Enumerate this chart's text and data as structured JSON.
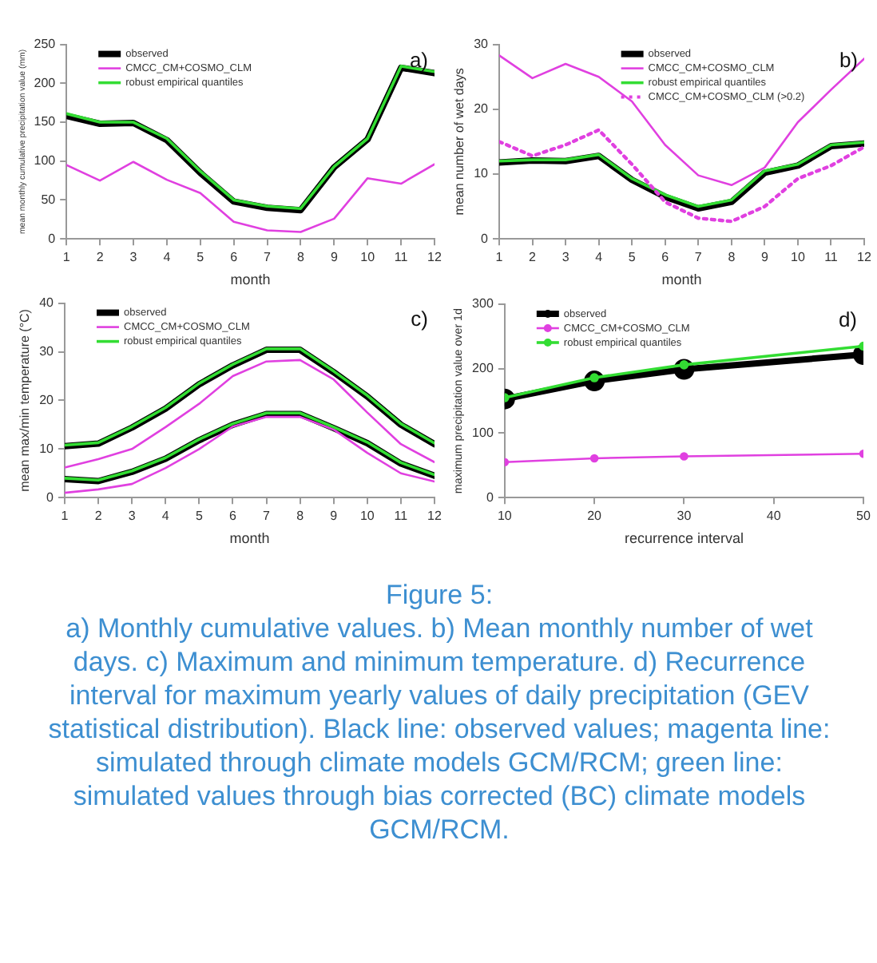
{
  "chart_data": [
    {
      "type": "line",
      "xlabel": "month",
      "ylabel": "mean monthly cumulative precipitation value (mm)",
      "x": [
        1,
        2,
        3,
        4,
        5,
        6,
        7,
        8,
        9,
        10,
        11,
        12
      ],
      "xlim": [
        1,
        12
      ],
      "xticks": [
        1,
        2,
        3,
        4,
        5,
        6,
        7,
        8,
        9,
        10,
        11,
        12
      ],
      "ylim": [
        0,
        250
      ],
      "yticks": [
        0,
        50,
        100,
        150,
        200,
        250
      ],
      "legend": "top left",
      "annotations": [
        "a)"
      ],
      "series": [
        {
          "name": "observed",
          "color": "#000000",
          "values": [
            158,
            148,
            149,
            127,
            85,
            48,
            40,
            37,
            92,
            128,
            220,
            213
          ]
        },
        {
          "name": "CMCC_CM+COSMO_CLM",
          "color": "#e040e0",
          "values": [
            95,
            75,
            99,
            76,
            59,
            22,
            11,
            9,
            26,
            78,
            71,
            96
          ]
        },
        {
          "name": "robust empirical quantiles",
          "color": "#33dd33",
          "values": [
            161,
            150,
            150,
            129,
            87,
            50,
            42,
            39,
            93,
            129,
            222,
            215
          ]
        }
      ]
    },
    {
      "type": "line",
      "xlabel": "month",
      "ylabel": "mean number of wet days",
      "x": [
        1,
        2,
        3,
        4,
        5,
        6,
        7,
        8,
        9,
        10,
        11,
        12
      ],
      "xlim": [
        1,
        12
      ],
      "xticks": [
        1,
        2,
        3,
        4,
        5,
        6,
        7,
        8,
        9,
        10,
        11,
        12
      ],
      "ylim": [
        0,
        30
      ],
      "yticks": [
        0,
        10,
        20,
        30
      ],
      "legend": "top",
      "annotations": [
        "b)"
      ],
      "series": [
        {
          "name": "observed",
          "color": "#000000",
          "values": [
            11.8,
            12.1,
            12,
            12.8,
            9.1,
            6.5,
            4.7,
            5.7,
            10.2,
            11.3,
            14.3,
            14.7
          ]
        },
        {
          "name": "CMCC_CM+COSMO_CLM",
          "color": "#e040e0",
          "values": [
            28.3,
            24.8,
            27,
            25,
            21.2,
            14.5,
            9.8,
            8.3,
            11,
            18,
            23,
            27.8
          ]
        },
        {
          "name": "robust empirical quantiles",
          "color": "#33dd33",
          "values": [
            12,
            12.2,
            12.2,
            13,
            9.3,
            6.8,
            5,
            6,
            10.5,
            11.5,
            14.5,
            14.9
          ]
        },
        {
          "name": "CMCC_CM+COSMO_CLM (>0.2)",
          "color": "#e040e0",
          "line_style": "dotted",
          "values": [
            15,
            12.8,
            14.5,
            16.8,
            11.5,
            5.7,
            3.2,
            2.7,
            5,
            9.3,
            11.3,
            14.2
          ]
        }
      ]
    },
    {
      "type": "line",
      "xlabel": "month",
      "ylabel": "mean max/min temperature (°C)",
      "x": [
        1,
        2,
        3,
        4,
        5,
        6,
        7,
        8,
        9,
        10,
        11,
        12
      ],
      "xlim": [
        1,
        12
      ],
      "xticks": [
        1,
        2,
        3,
        4,
        5,
        6,
        7,
        8,
        9,
        10,
        11,
        12
      ],
      "ylim": [
        0,
        40
      ],
      "yticks": [
        0,
        10,
        20,
        30,
        40
      ],
      "legend": "top left",
      "annotations": [
        "c)"
      ],
      "series": [
        {
          "name": "observed",
          "color": "#000000",
          "values": [
            10.6,
            11.1,
            14.4,
            18.3,
            23.3,
            27.2,
            30.4,
            30.4,
            25.8,
            20.8,
            15,
            11
          ]
        },
        {
          "color": "#000000",
          "values": [
            3.8,
            3.4,
            5.3,
            8,
            11.8,
            15,
            17.2,
            17.2,
            14.3,
            11.2,
            7,
            4.5
          ]
        },
        {
          "name": "CMCC_CM+COSMO_CLM",
          "color": "#e040e0",
          "values": [
            6.2,
            7.9,
            10,
            14.5,
            19.3,
            25,
            28,
            28.3,
            24.3,
            17.5,
            11,
            7.3
          ]
        },
        {
          "color": "#e040e0",
          "values": [
            1,
            1.7,
            2.8,
            6.1,
            10,
            14.6,
            16.6,
            16.6,
            14,
            9.2,
            5,
            3.3
          ]
        },
        {
          "name": "robust empirical quantiles",
          "color": "#33dd33",
          "values": [
            10.8,
            11.3,
            14.6,
            18.5,
            23.5,
            27.4,
            30.6,
            30.6,
            26,
            21,
            15.2,
            11.2
          ]
        },
        {
          "color": "#33dd33",
          "values": [
            4,
            3.6,
            5.5,
            8.2,
            12,
            15.2,
            17.4,
            17.4,
            14.5,
            11.4,
            7.2,
            4.7
          ]
        }
      ]
    },
    {
      "type": "line",
      "xlabel": "recurrence interval",
      "ylabel": "maximum precipitation value over 1d",
      "x": [
        10,
        20,
        30,
        50
      ],
      "xlim": [
        10,
        50
      ],
      "xticks": [
        10,
        20,
        30,
        40,
        50
      ],
      "ylim": [
        0,
        300
      ],
      "yticks": [
        0,
        100,
        200,
        300
      ],
      "legend": "top left",
      "marker": "circle",
      "annotations": [
        "d)"
      ],
      "series": [
        {
          "name": "observed",
          "color": "#000000",
          "values": [
            153,
            181,
            199,
            222
          ]
        },
        {
          "name": "CMCC_CM+COSMO_CLM",
          "color": "#e040e0",
          "values": [
            55,
            61,
            64,
            68
          ]
        },
        {
          "name": "robust empirical quantiles",
          "color": "#33dd33",
          "values": [
            155,
            186,
            206,
            235
          ]
        }
      ]
    },
    {
      "type": "other",
      "title": "Figure 5:",
      "annotations": [
        "a) Monthly cumulative values. b) Mean monthly number of wet days. c) Maximum and minimum temperature. d) Recurrence interval for maximum yearly values of daily precipitation (GEV statistical distribution). Black line: observed values; magenta line: simulated through climate models GCM/RCM; green line: simulated values through bias corrected (BC) climate models GCM/RCM."
      ]
    }
  ]
}
